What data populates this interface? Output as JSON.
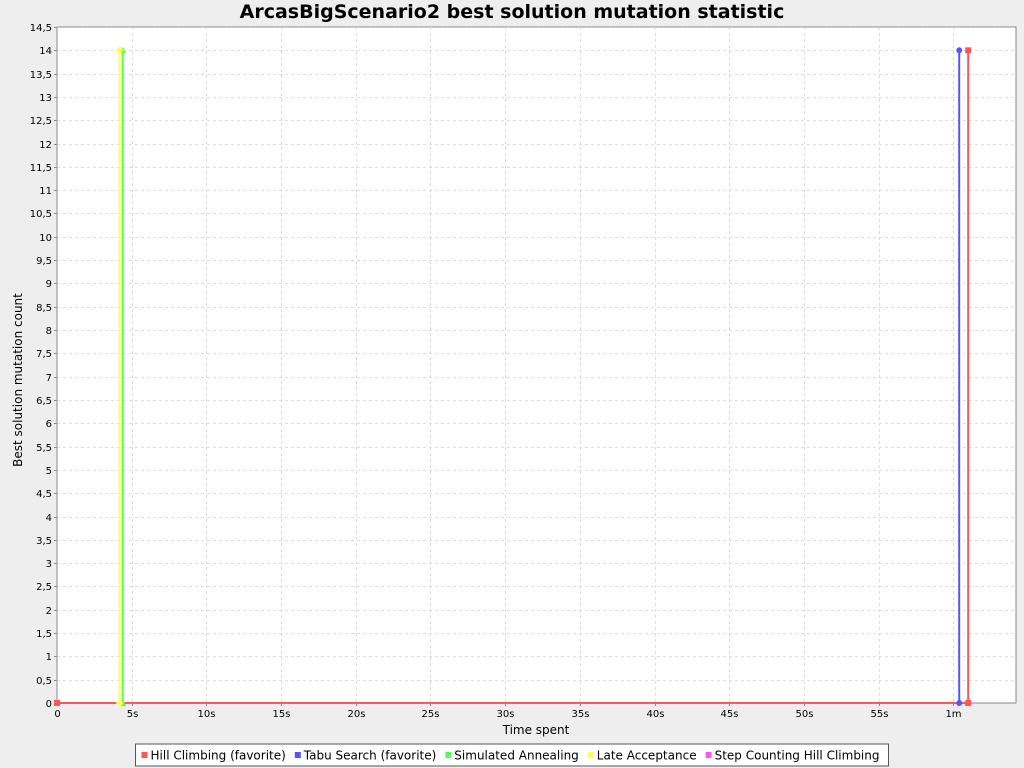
{
  "chart_data": {
    "type": "line",
    "title": "ArcasBigScenario2 best solution mutation statistic",
    "xlabel": "Time spent",
    "ylabel": "Best solution mutation count",
    "xlim": [
      0,
      64.2
    ],
    "ylim": [
      0,
      14.5
    ],
    "x_ticks": [
      {
        "value": 0,
        "label": "0"
      },
      {
        "value": 5,
        "label": "5s"
      },
      {
        "value": 10,
        "label": "10s"
      },
      {
        "value": 15,
        "label": "15s"
      },
      {
        "value": 20,
        "label": "20s"
      },
      {
        "value": 25,
        "label": "25s"
      },
      {
        "value": 30,
        "label": "30s"
      },
      {
        "value": 35,
        "label": "35s"
      },
      {
        "value": 40,
        "label": "40s"
      },
      {
        "value": 45,
        "label": "45s"
      },
      {
        "value": 50,
        "label": "50s"
      },
      {
        "value": 55,
        "label": "55s"
      },
      {
        "value": 60,
        "label": "1m"
      }
    ],
    "y_ticks": [
      {
        "value": 0,
        "label": "0"
      },
      {
        "value": 0.5,
        "label": "0,5"
      },
      {
        "value": 1,
        "label": "1"
      },
      {
        "value": 1.5,
        "label": "1,5"
      },
      {
        "value": 2,
        "label": "2"
      },
      {
        "value": 2.5,
        "label": "2,5"
      },
      {
        "value": 3,
        "label": "3"
      },
      {
        "value": 3.5,
        "label": "3,5"
      },
      {
        "value": 4,
        "label": "4"
      },
      {
        "value": 4.5,
        "label": "4,5"
      },
      {
        "value": 5,
        "label": "5"
      },
      {
        "value": 5.5,
        "label": "5,5"
      },
      {
        "value": 6,
        "label": "6"
      },
      {
        "value": 6.5,
        "label": "6,5"
      },
      {
        "value": 7,
        "label": "7"
      },
      {
        "value": 7.5,
        "label": "7,5"
      },
      {
        "value": 8,
        "label": "8"
      },
      {
        "value": 8.5,
        "label": "8,5"
      },
      {
        "value": 9,
        "label": "9"
      },
      {
        "value": 9.5,
        "label": "9,5"
      },
      {
        "value": 10,
        "label": "10"
      },
      {
        "value": 10.5,
        "label": "10,5"
      },
      {
        "value": 11,
        "label": "11"
      },
      {
        "value": 11.5,
        "label": "11,5"
      },
      {
        "value": 12,
        "label": "12"
      },
      {
        "value": 12.5,
        "label": "12,5"
      },
      {
        "value": 13,
        "label": "13"
      },
      {
        "value": 13.5,
        "label": "13,5"
      },
      {
        "value": 14,
        "label": "14"
      },
      {
        "value": 14.5,
        "label": "14,5"
      }
    ],
    "grid": true,
    "legend_position": "bottom",
    "series": [
      {
        "name": "Hill Climbing (favorite)",
        "color": "#ff5555",
        "marker": "square",
        "points": [
          [
            0,
            0
          ],
          [
            61.0,
            0
          ],
          [
            61.0,
            14
          ]
        ]
      },
      {
        "name": "Tabu Search (favorite)",
        "color": "#5555ff",
        "marker": "circle",
        "points": [
          [
            60.4,
            0
          ],
          [
            60.4,
            14
          ]
        ]
      },
      {
        "name": "Simulated Annealing",
        "color": "#55ff55",
        "marker": "triangle-up",
        "points": [
          [
            4.4,
            0
          ],
          [
            4.4,
            14
          ]
        ]
      },
      {
        "name": "Late Acceptance",
        "color": "#ffff55",
        "marker": "diamond",
        "points": [
          [
            4.2,
            0
          ],
          [
            4.2,
            14
          ]
        ]
      },
      {
        "name": "Step Counting Hill Climbing",
        "color": "#ff55ff",
        "marker": "square",
        "points": []
      }
    ]
  }
}
